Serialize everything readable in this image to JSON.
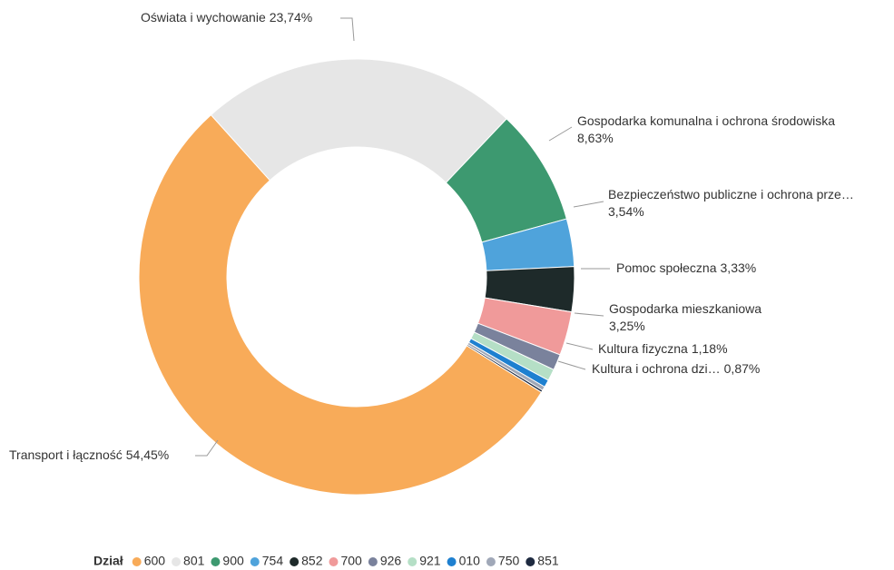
{
  "chart_data": {
    "type": "donut",
    "categories": [
      "600",
      "801",
      "900",
      "754",
      "852",
      "700",
      "926",
      "921",
      "010",
      "750",
      "851"
    ],
    "labels": [
      "Transport i łączność",
      "Oświata i wychowanie",
      "Gospodarka komunalna i ochrona środowiska",
      "Bezpieczeństwo publiczne i ochrona prze…",
      "Pomoc społeczna",
      "Gospodarka mieszkaniowa",
      "Kultura fizyczna",
      "Kultura i ochrona dzi…",
      null,
      null,
      null
    ],
    "values": [
      54.45,
      23.74,
      8.63,
      3.54,
      3.33,
      3.25,
      1.18,
      0.87,
      0.55,
      0.3,
      0.16
    ],
    "value_labels": [
      "54,45%",
      "23,74%",
      "8,63%",
      "3,54%",
      "3,33%",
      "3,25%",
      "1,18%",
      "0,87%",
      null,
      null,
      null
    ],
    "colors": [
      "#f8ab59",
      "#e6e6e6",
      "#3d9970",
      "#4fa3db",
      "#1e2a2a",
      "#f09a9a",
      "#7a829c",
      "#b5dfc6",
      "#1e80d0",
      "#a0a8b8",
      "#1e2a40"
    ],
    "legend_title": "Dział",
    "legend": "bottom"
  }
}
